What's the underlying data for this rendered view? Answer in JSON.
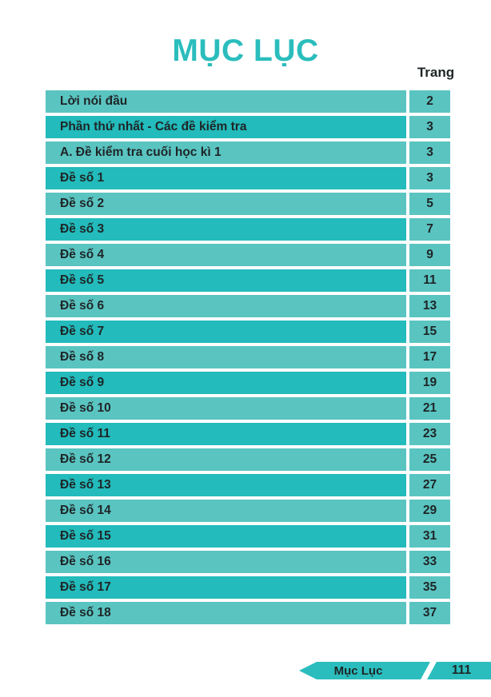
{
  "title": "MỤC LỤC",
  "column_header": "Trang",
  "table": {
    "rows": [
      {
        "title": "Lời nói đầu",
        "page": "2"
      },
      {
        "title": "Phần thứ nhất - Các đề kiểm tra",
        "page": "3"
      },
      {
        "title": "A. Đề kiểm tra cuối học kì 1",
        "page": "3"
      },
      {
        "title": "Đề số 1",
        "page": "3"
      },
      {
        "title": "Đề số 2",
        "page": "5"
      },
      {
        "title": "Đề số 3",
        "page": "7"
      },
      {
        "title": "Đề số 4",
        "page": "9"
      },
      {
        "title": "Đề số 5",
        "page": "11"
      },
      {
        "title": "Đề số 6",
        "page": "13"
      },
      {
        "title": "Đề số 7",
        "page": "15"
      },
      {
        "title": "Đề số 8",
        "page": "17"
      },
      {
        "title": "Đề số 9",
        "page": "19"
      },
      {
        "title": "Đề số 10",
        "page": "21"
      },
      {
        "title": "Đề số 11",
        "page": "23"
      },
      {
        "title": "Đề số 12",
        "page": "25"
      },
      {
        "title": "Đề số 13",
        "page": "27"
      },
      {
        "title": "Đề số 14",
        "page": "29"
      },
      {
        "title": "Đề số 15",
        "page": "31"
      },
      {
        "title": "Đề số 16",
        "page": "33"
      },
      {
        "title": "Đề số 17",
        "page": "35"
      },
      {
        "title": "Đề số 18",
        "page": "37"
      }
    ]
  },
  "footer": {
    "section": "Mục Lục",
    "page": "111"
  },
  "colors": {
    "accent": "#2bbdbd",
    "row_dark": "#23bbbc",
    "row_light": "#5ac4c1",
    "text": "#1e2526",
    "page_bg": "#ffffff"
  }
}
